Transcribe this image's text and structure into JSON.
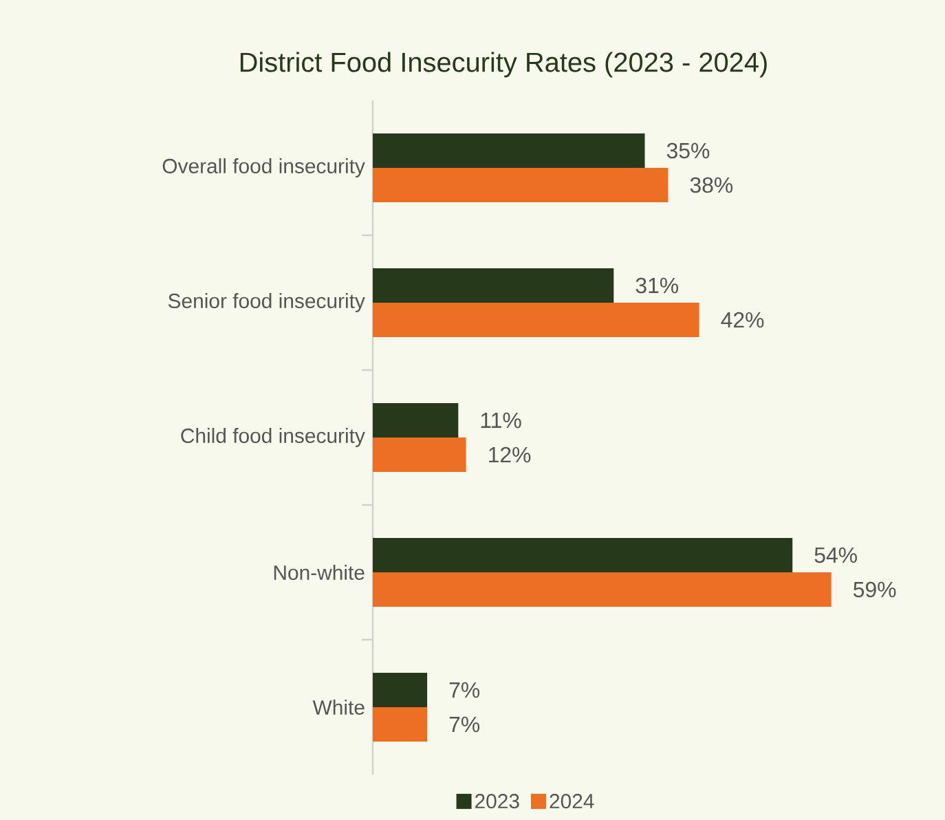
{
  "chart_data": {
    "type": "bar",
    "orientation": "horizontal",
    "title": "District Food Insecurity Rates (2023 - 2024)",
    "categories": [
      "Overall food insecurity",
      "Senior food insecurity",
      "Child food insecurity",
      "Non-white",
      "White"
    ],
    "series": [
      {
        "name": "2023",
        "color": "#263a1b",
        "values": [
          35,
          31,
          11,
          54,
          7
        ],
        "value_labels": [
          "35%",
          "31%",
          "11%",
          "54%",
          "7%"
        ]
      },
      {
        "name": "2024",
        "color": "#ec6f24",
        "values": [
          38,
          42,
          12,
          59,
          7
        ],
        "value_labels": [
          "38%",
          "42%",
          "12%",
          "59%",
          "7%"
        ]
      }
    ],
    "legend": "bottom"
  }
}
